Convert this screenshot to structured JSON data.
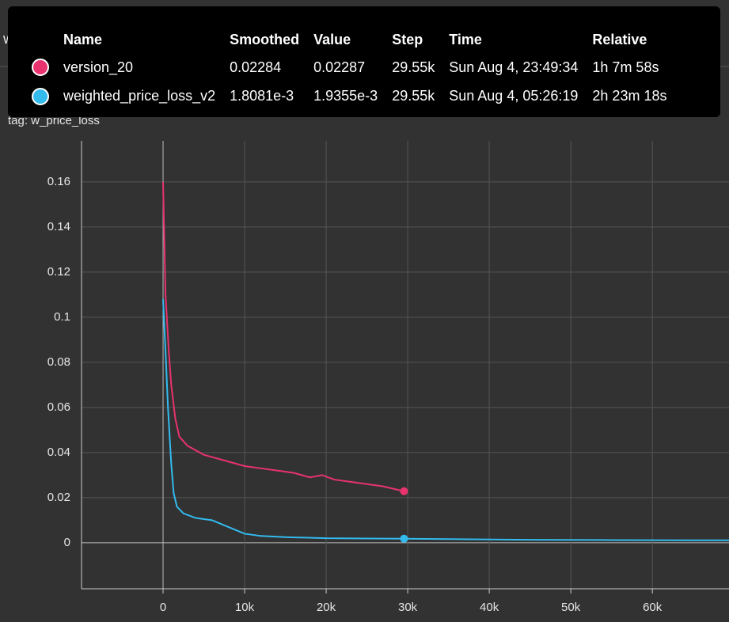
{
  "chart_data": {
    "type": "line",
    "title": "w_price_loss",
    "subtitle": "tag: w_price_loss",
    "xlim": [
      -10000,
      69400
    ],
    "ylim": [
      -0.0204,
      0.1782
    ],
    "xticks": [
      {
        "value": 0,
        "label": "0"
      },
      {
        "value": 10000,
        "label": "10k"
      },
      {
        "value": 20000,
        "label": "20k"
      },
      {
        "value": 30000,
        "label": "30k"
      },
      {
        "value": 40000,
        "label": "40k"
      },
      {
        "value": 50000,
        "label": "50k"
      },
      {
        "value": 60000,
        "label": "60k"
      }
    ],
    "yticks": [
      0,
      0.02,
      0.04,
      0.06,
      0.08,
      0.1,
      0.12,
      0.14,
      0.16
    ],
    "grid": true,
    "series": [
      {
        "name": "version_20",
        "color": "#e8336e",
        "x": [
          0,
          300,
          700,
          1000,
          1500,
          2000,
          3000,
          4000,
          5000,
          6000,
          8000,
          10000,
          12000,
          14000,
          16000,
          18000,
          19500,
          21000,
          23000,
          25000,
          27000,
          29550
        ],
        "values": [
          0.16,
          0.11,
          0.085,
          0.07,
          0.055,
          0.047,
          0.043,
          0.041,
          0.039,
          0.038,
          0.036,
          0.034,
          0.033,
          0.032,
          0.031,
          0.029,
          0.03,
          0.028,
          0.027,
          0.026,
          0.025,
          0.02284
        ]
      },
      {
        "name": "weighted_price_loss_v2",
        "color": "#33bbee",
        "x": [
          0,
          300,
          600,
          1000,
          1300,
          1700,
          2500,
          4000,
          6000,
          8000,
          10000,
          12000,
          15000,
          20000,
          25000,
          29550,
          35000,
          45000,
          55000,
          65000,
          69400
        ],
        "values": [
          0.108,
          0.085,
          0.06,
          0.035,
          0.022,
          0.016,
          0.013,
          0.011,
          0.01,
          0.007,
          0.004,
          0.003,
          0.0025,
          0.002,
          0.0019,
          0.0018081,
          0.0016,
          0.0013,
          0.0012,
          0.0011,
          0.0011
        ]
      }
    ]
  },
  "tooltip": {
    "columns": [
      "Name",
      "Smoothed",
      "Value",
      "Step",
      "Time",
      "Relative"
    ],
    "rows": [
      [
        "version_20",
        "0.02284",
        "0.02287",
        "29.55k",
        "Sun Aug 4, 23:49:34",
        "1h 7m 58s"
      ],
      [
        "weighted_price_loss_v2",
        "1.8081e-3",
        "1.9355e-3",
        "29.55k",
        "Sun Aug 4, 05:26:19",
        "2h 23m 18s"
      ]
    ]
  }
}
